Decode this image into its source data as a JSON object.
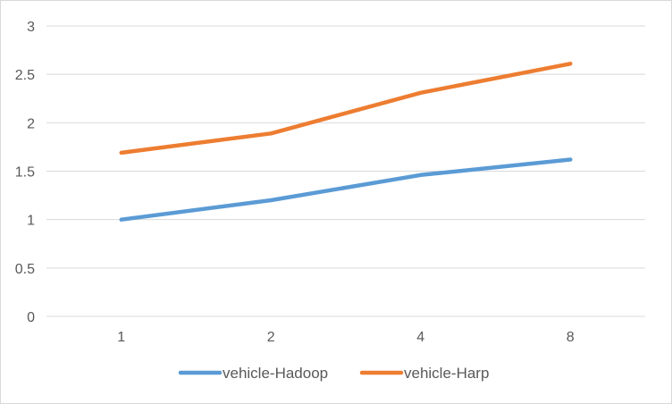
{
  "chart_data": {
    "type": "line",
    "categories": [
      "1",
      "2",
      "4",
      "8"
    ],
    "series": [
      {
        "name": "vehicle-Hadoop",
        "color": "#5b9bd5",
        "values": [
          1.0,
          1.2,
          1.46,
          1.62
        ]
      },
      {
        "name": "vehicle-Harp",
        "color": "#ed7d31",
        "values": [
          1.69,
          1.89,
          2.31,
          2.61
        ]
      }
    ],
    "ylim": [
      0,
      3
    ],
    "yticks": [
      "0",
      "0.5",
      "1",
      "1.5",
      "2",
      "2.5",
      "3"
    ],
    "grid": true,
    "legend_position": "bottom",
    "title": "",
    "xlabel": "",
    "ylabel": ""
  }
}
